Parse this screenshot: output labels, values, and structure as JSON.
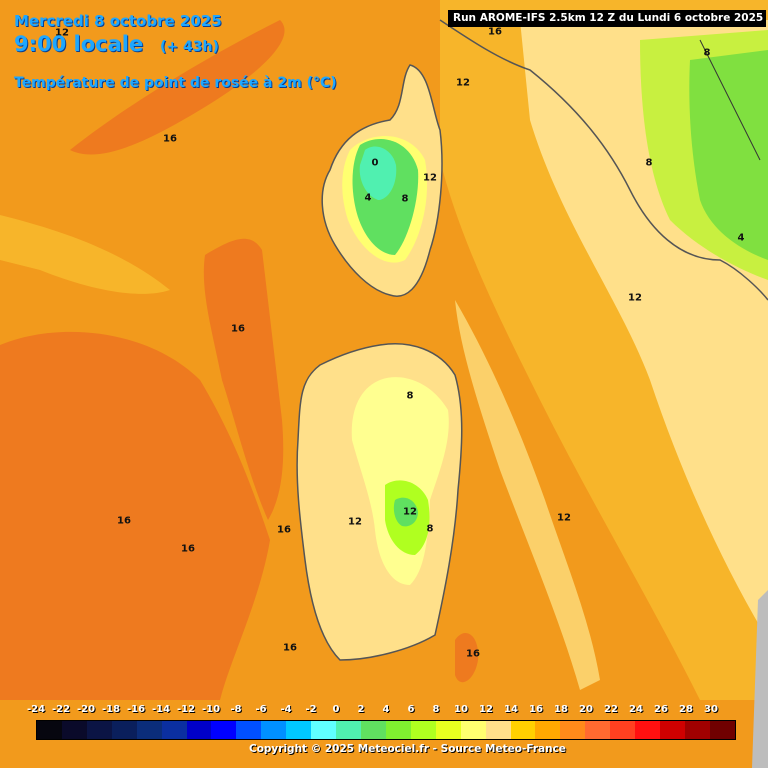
{
  "header": {
    "date": "Mercredi 8 octobre 2025",
    "hour": "9:00 locale",
    "lead": "(+ 43h)",
    "variable": "Température de point de rosée à 2m (°C)"
  },
  "run_label": "Run AROME-IFS 2.5km 12 Z du Lundi 6 octobre 2025",
  "contour_labels": [
    {
      "text": "12"
    },
    {
      "text": "16"
    },
    {
      "text": "12"
    },
    {
      "text": "16"
    },
    {
      "text": "8"
    },
    {
      "text": "0"
    },
    {
      "text": "12"
    },
    {
      "text": "4"
    },
    {
      "text": "8"
    },
    {
      "text": "8"
    },
    {
      "text": "12"
    },
    {
      "text": "16"
    },
    {
      "text": "4"
    },
    {
      "text": "8"
    },
    {
      "text": "12"
    },
    {
      "text": "16"
    },
    {
      "text": "16"
    },
    {
      "text": "16"
    },
    {
      "text": "12"
    },
    {
      "text": "8"
    },
    {
      "text": "12"
    },
    {
      "text": "16"
    },
    {
      "text": "16"
    }
  ],
  "legend": {
    "ticks": [
      "-24",
      "-22",
      "-20",
      "-18",
      "-16",
      "-14",
      "-12",
      "-10",
      "-8",
      "-6",
      "-4",
      "-2",
      "0",
      "2",
      "4",
      "6",
      "8",
      "10",
      "12",
      "14",
      "16",
      "18",
      "20",
      "22",
      "24",
      "26",
      "28",
      "30"
    ],
    "colors": [
      "#06060f",
      "#0a0a2a",
      "#0b1444",
      "#0a1f5c",
      "#0b2d7a",
      "#0b2fa0",
      "#0000c8",
      "#0000ff",
      "#0050ff",
      "#0090ff",
      "#00c8ff",
      "#60ffff",
      "#50f0b0",
      "#60e060",
      "#80f030",
      "#b0ff20",
      "#e8ff20",
      "#ffff70",
      "#ffe08a",
      "#ffd000",
      "#ffa800",
      "#ff8a1a",
      "#ff6a30",
      "#ff4020",
      "#ff1010",
      "#d00000",
      "#a00000",
      "#700000"
    ]
  },
  "copyright": "Copyright © 2025 Meteociel.fr - Source Meteo-France"
}
